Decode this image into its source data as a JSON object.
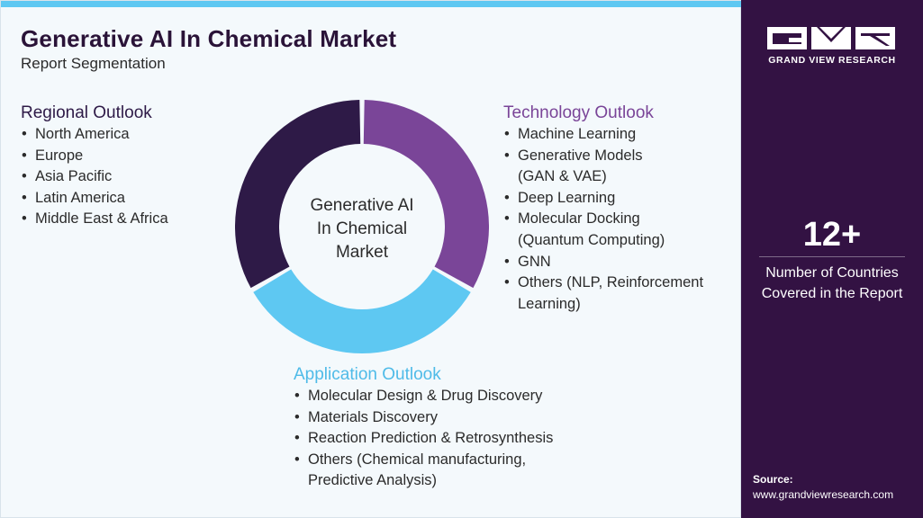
{
  "header": {
    "title": "Generative AI In Chemical Market",
    "subtitle": "Report Segmentation"
  },
  "colors": {
    "regional": "#2e1a47",
    "technology": "#7a4598",
    "application": "#5ec8f2",
    "sidebar": "#331243",
    "accent_bar": "#5ec8f2"
  },
  "diagram": {
    "center_lines": [
      "Generative AI",
      "In Chemical",
      "Market"
    ],
    "segments": [
      {
        "key": "technology",
        "share": 0.333
      },
      {
        "key": "application",
        "share": 0.333
      },
      {
        "key": "regional",
        "share": 0.333
      }
    ]
  },
  "regional": {
    "title": "Regional Outlook",
    "items": [
      "North America",
      "Europe",
      "Asia Pacific",
      "Latin America",
      "Middle East & Africa"
    ]
  },
  "technology": {
    "title": "Technology Outlook",
    "items": [
      [
        "Machine Learning"
      ],
      [
        "Generative Models",
        "(GAN & VAE)"
      ],
      [
        "Deep Learning"
      ],
      [
        "Molecular Docking",
        "(Quantum Computing)"
      ],
      [
        "GNN"
      ],
      [
        "Others (NLP, Reinforcement",
        "Learning)"
      ]
    ]
  },
  "application": {
    "title": "Application Outlook",
    "items": [
      [
        "Molecular Design & Drug Discovery"
      ],
      [
        "Materials Discovery"
      ],
      [
        "Reaction Prediction & Retrosynthesis"
      ],
      [
        "Others (Chemical manufacturing,",
        "Predictive Analysis)"
      ]
    ]
  },
  "sidebar": {
    "brand": "GRAND VIEW RESEARCH",
    "logo_icon": "gvr-logo-icon",
    "stat_value": "12+",
    "stat_label_lines": [
      "Number of Countries",
      "Covered in the Report"
    ],
    "source_label": "Source:",
    "source_url": "www.grandviewresearch.com"
  }
}
